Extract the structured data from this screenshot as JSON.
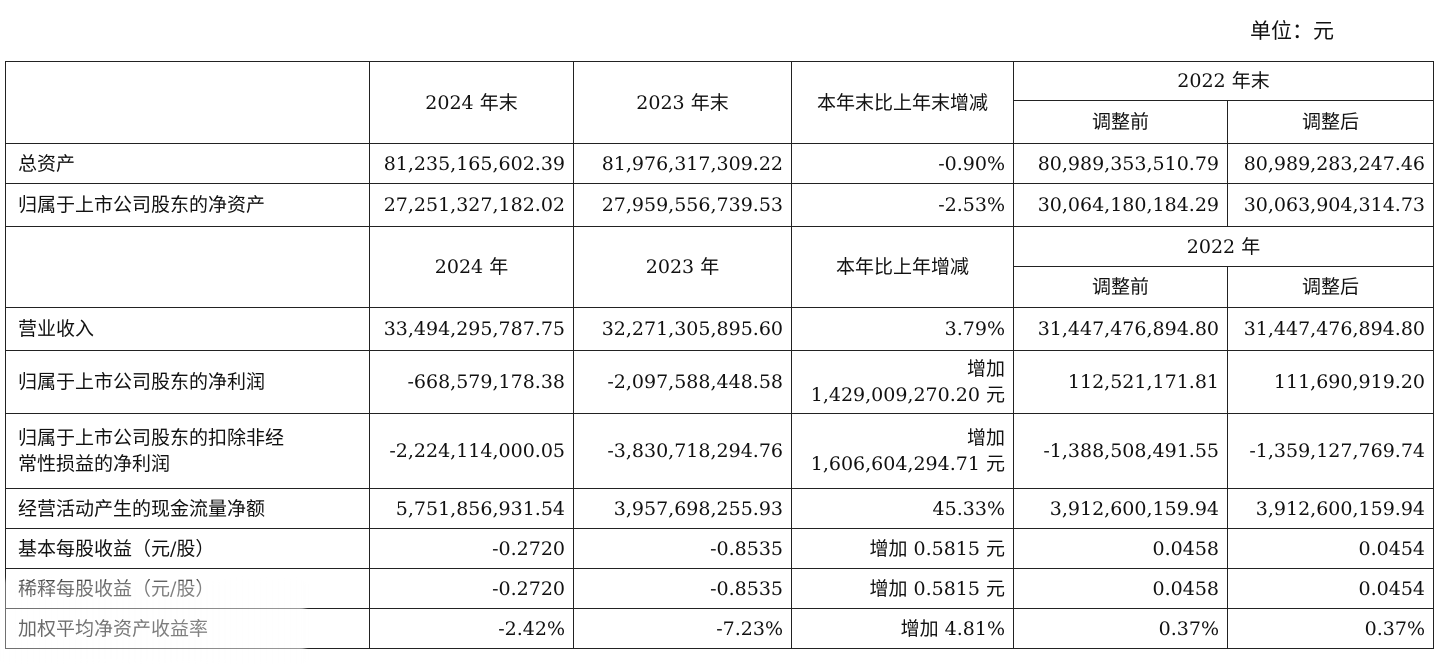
{
  "unit_label": "单位：元",
  "headers": {
    "balance": {
      "col_2024": "2024 年末",
      "col_2023": "2023 年末",
      "col_change": "本年末比上年末增减",
      "col_2022": "2022 年末",
      "col_before": "调整前",
      "col_after": "调整后"
    },
    "income": {
      "col_2024": "2024 年",
      "col_2023": "2023 年",
      "col_change": "本年比上年增减",
      "col_2022": "2022 年",
      "col_before": "调整前",
      "col_after": "调整后"
    }
  },
  "balance_rows": [
    {
      "label": "总资产",
      "v2024": "81,235,165,602.39",
      "v2023": "81,976,317,309.22",
      "change": "-0.90%",
      "before": "80,989,353,510.79",
      "after": "80,989,283,247.46"
    },
    {
      "label": "归属于上市公司股东的净资产",
      "v2024": "27,251,327,182.02",
      "v2023": "27,959,556,739.53",
      "change": "-2.53%",
      "before": "30,064,180,184.29",
      "after": "30,063,904,314.73"
    }
  ],
  "income_rows": [
    {
      "label": "营业收入",
      "v2024": "33,494,295,787.75",
      "v2023": "32,271,305,895.60",
      "change": "3.79%",
      "before": "31,447,476,894.80",
      "after": "31,447,476,894.80"
    },
    {
      "label": "归属于上市公司股东的净利润",
      "v2024": "-668,579,178.38",
      "v2023": "-2,097,588,448.58",
      "change_line1": "增加",
      "change_line2": "1,429,009,270.20 元",
      "before": "112,521,171.81",
      "after": "111,690,919.20"
    },
    {
      "label_line1": "归属于上市公司股东的扣除非经",
      "label_line2": "常性损益的净利润",
      "v2024": "-2,224,114,000.05",
      "v2023": "-3,830,718,294.76",
      "change_line1": "增加",
      "change_line2": "1,606,604,294.71 元",
      "before": "-1,388,508,491.55",
      "after": "-1,359,127,769.74"
    },
    {
      "label": "经营活动产生的现金流量净额",
      "v2024": "5,751,856,931.54",
      "v2023": "3,957,698,255.93",
      "change": "45.33%",
      "before": "3,912,600,159.94",
      "after": "3,912,600,159.94"
    },
    {
      "label": "基本每股收益（元/股）",
      "v2024": "-0.2720",
      "v2023": "-0.8535",
      "change": "增加 0.5815 元",
      "before": "0.0458",
      "after": "0.0454"
    },
    {
      "label": "稀释每股收益（元/股）",
      "v2024": "-0.2720",
      "v2023": "-0.8535",
      "change": "增加 0.5815 元",
      "before": "0.0458",
      "after": "0.0454"
    },
    {
      "label": "加权平均净资产收益率",
      "v2024": "-2.42%",
      "v2023": "-7.23%",
      "change": "增加 4.81%",
      "before": "0.37%",
      "after": "0.37%"
    }
  ]
}
